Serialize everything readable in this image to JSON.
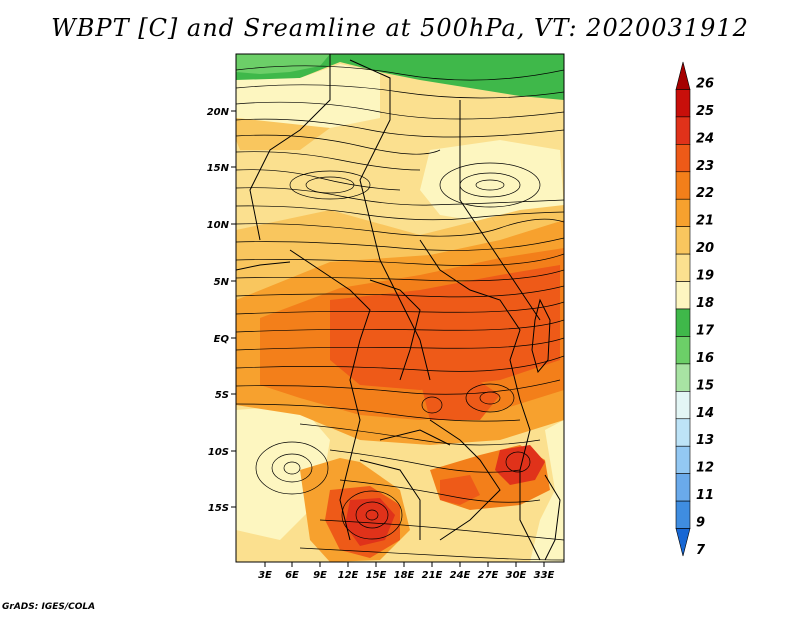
{
  "title": "WBPT [C] and Sreamline at 500hPa, VT: 2020031912",
  "credit": "GrADS: IGES/COLA",
  "map": {
    "lat_labels": [
      "20N",
      "15N",
      "10N",
      "5N",
      "EQ",
      "5S",
      "10S",
      "15S"
    ],
    "lon_labels": [
      "3E",
      "6E",
      "9E",
      "12E",
      "15E",
      "18E",
      "21E",
      "24E",
      "27E",
      "30E",
      "33E"
    ]
  },
  "colorbar": {
    "labels": [
      "26",
      "25",
      "24",
      "23",
      "22",
      "21",
      "20",
      "19",
      "18",
      "17",
      "16",
      "15",
      "14",
      "13",
      "12",
      "11",
      "9",
      "7"
    ],
    "colors": [
      "#a50000",
      "#c80f0a",
      "#e0321a",
      "#ee5a18",
      "#f37f1a",
      "#f7a12e",
      "#f9c65e",
      "#fbe08f",
      "#fdf6c0",
      "#3fb84a",
      "#6ccf68",
      "#a8e3a3",
      "#e3f6f5",
      "#bde3f7",
      "#93c8f3",
      "#6aaaeb",
      "#3f8de0",
      "#1767d4"
    ]
  }
}
